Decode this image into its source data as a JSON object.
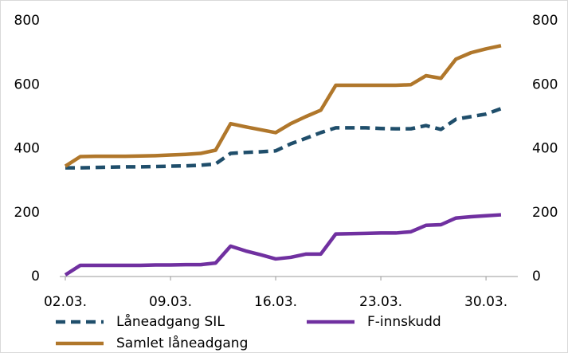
{
  "chart_data": {
    "type": "line",
    "categories": [
      "02.03.",
      null,
      null,
      null,
      null,
      null,
      null,
      "09.03.",
      null,
      null,
      null,
      null,
      null,
      null,
      "16.03.",
      null,
      null,
      null,
      null,
      null,
      null,
      "23.03.",
      null,
      null,
      null,
      null,
      null,
      null,
      "30.03.",
      null
    ],
    "series": [
      {
        "name": "Låneadgang SIL",
        "color": "#1f4e6b",
        "dashed": true,
        "values": [
          340,
          340,
          341,
          342,
          343,
          343,
          344,
          345,
          346,
          348,
          352,
          385,
          388,
          390,
          393,
          415,
          432,
          450,
          465,
          465,
          465,
          463,
          462,
          462,
          472,
          460,
          492,
          500,
          508,
          525
        ]
      },
      {
        "name": "F-innskudd",
        "color": "#7030a0",
        "values": [
          5,
          35,
          35,
          35,
          35,
          35,
          36,
          36,
          37,
          37,
          42,
          95,
          80,
          68,
          55,
          60,
          70,
          70,
          133,
          134,
          135,
          136,
          136,
          140,
          160,
          162,
          183,
          187,
          190,
          193
        ]
      },
      {
        "name": "Samlet låneadgang",
        "color": "#b0772b",
        "values": [
          345,
          375,
          376,
          376,
          376,
          377,
          378,
          380,
          382,
          385,
          395,
          478,
          468,
          459,
          450,
          478,
          500,
          520,
          598,
          598,
          598,
          598,
          598,
          600,
          628,
          620,
          680,
          700,
          712,
          722
        ]
      }
    ],
    "ylim": [
      0,
      800
    ],
    "yticks": [
      0,
      200,
      400,
      600,
      800
    ],
    "y2lim": [
      0,
      800
    ],
    "y2ticks": [
      0,
      200,
      400,
      600,
      800
    ]
  }
}
